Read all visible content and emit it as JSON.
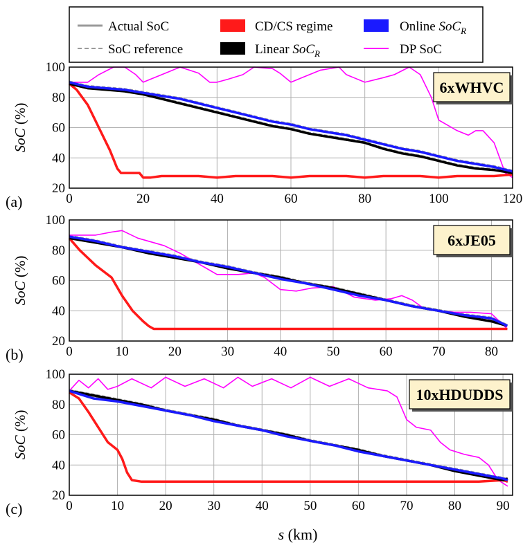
{
  "legend": [
    {
      "key": "actual",
      "label": "Actual SoC",
      "color": "#9a9a9a",
      "style": "solid-thin"
    },
    {
      "key": "ref",
      "label": "SoC reference",
      "color": "#9a9a9a",
      "style": "dashed"
    },
    {
      "key": "cdcs",
      "label": "CD/CS regime",
      "color": "#ff1a1a",
      "style": "thick"
    },
    {
      "key": "linear",
      "label_prefix": "Linear ",
      "label_math": "SoC",
      "label_sub": "R",
      "color": "#000000",
      "style": "thick"
    },
    {
      "key": "online",
      "label_prefix": "Online ",
      "label_math": "SoC",
      "label_sub": "R",
      "color": "#1a1aff",
      "style": "thick"
    },
    {
      "key": "dp",
      "label": "DP SoC",
      "color": "#ff00ff",
      "style": "thin"
    }
  ],
  "xlabel": {
    "var": "s",
    "unit": " (km)"
  },
  "chart_data": [
    {
      "type": "line",
      "panel": "(a)",
      "badge": "6xWHVC",
      "ylabel": "SoC (%)",
      "xlim": [
        0,
        120
      ],
      "ylim": [
        20,
        100
      ],
      "xticks": [
        0,
        20,
        40,
        60,
        80,
        100,
        120
      ],
      "yticks": [
        20,
        40,
        60,
        80,
        100
      ],
      "series": [
        {
          "key": "cdcs",
          "x": [
            0,
            2,
            5,
            8,
            11,
            13,
            14,
            19,
            20,
            22,
            25,
            30,
            35,
            40,
            45,
            50,
            55,
            60,
            65,
            70,
            75,
            80,
            85,
            90,
            95,
            100,
            105,
            110,
            115,
            120
          ],
          "y": [
            89,
            85,
            75,
            60,
            45,
            33,
            30,
            30,
            27,
            27,
            28,
            28,
            28,
            27,
            28,
            28,
            28,
            27,
            28,
            28,
            28,
            27,
            28,
            28,
            28,
            27,
            28,
            28,
            28,
            29
          ]
        },
        {
          "key": "dp",
          "x": [
            0,
            5,
            8,
            12,
            15,
            18,
            20,
            22,
            27,
            30,
            35,
            38,
            40,
            43,
            47,
            50,
            55,
            57,
            60,
            63,
            68,
            73,
            75,
            80,
            85,
            88,
            92,
            95,
            98,
            100,
            105,
            108,
            110,
            112,
            115,
            118,
            120
          ],
          "y": [
            90,
            90,
            95,
            100,
            100,
            95,
            90,
            92,
            97,
            100,
            96,
            90,
            90,
            92,
            95,
            100,
            99,
            96,
            90,
            93,
            98,
            100,
            95,
            90,
            93,
            95,
            100,
            95,
            80,
            65,
            58,
            55,
            58,
            58,
            50,
            30,
            27
          ]
        },
        {
          "key": "linear",
          "x": [
            0,
            5,
            10,
            15,
            20,
            25,
            30,
            35,
            40,
            45,
            50,
            55,
            60,
            65,
            70,
            75,
            80,
            85,
            90,
            95,
            100,
            105,
            110,
            115,
            120
          ],
          "y": [
            89,
            86,
            85,
            84,
            82,
            79,
            76,
            73,
            70,
            67,
            64,
            61,
            59,
            56,
            54,
            52,
            50,
            46,
            43,
            41,
            38,
            35,
            33,
            32,
            30
          ]
        },
        {
          "key": "online",
          "x": [
            0,
            5,
            10,
            15,
            20,
            25,
            30,
            35,
            40,
            45,
            50,
            55,
            60,
            65,
            70,
            75,
            80,
            85,
            90,
            95,
            100,
            105,
            110,
            115,
            120
          ],
          "y": [
            90,
            87,
            86,
            85,
            83,
            81,
            79,
            76,
            73,
            70,
            67,
            64,
            62,
            59,
            57,
            55,
            52,
            49,
            46,
            44,
            41,
            38,
            36,
            34,
            31
          ]
        }
      ]
    },
    {
      "type": "line",
      "panel": "(b)",
      "badge": "6xJE05",
      "ylabel": "SoC (%)",
      "xlim": [
        0,
        84
      ],
      "ylim": [
        20,
        100
      ],
      "xticks": [
        0,
        10,
        20,
        30,
        40,
        50,
        60,
        70,
        80
      ],
      "yticks": [
        20,
        40,
        60,
        80,
        100
      ],
      "series": [
        {
          "key": "cdcs",
          "x": [
            0,
            2,
            5,
            8,
            10,
            12,
            14,
            15,
            16,
            20,
            25,
            30,
            35,
            40,
            45,
            50,
            55,
            60,
            65,
            70,
            75,
            80,
            83
          ],
          "y": [
            88,
            80,
            70,
            62,
            50,
            40,
            33,
            30,
            28,
            28,
            28,
            28,
            28,
            28,
            28,
            28,
            28,
            28,
            28,
            28,
            28,
            28,
            28
          ]
        },
        {
          "key": "dp",
          "x": [
            0,
            5,
            8,
            10,
            13,
            16,
            18,
            21,
            24,
            26,
            28,
            32,
            35,
            37,
            40,
            43,
            46,
            50,
            54,
            58,
            61,
            63,
            65,
            67,
            70,
            73,
            76,
            80,
            83
          ],
          "y": [
            90,
            90,
            92,
            93,
            88,
            85,
            83,
            78,
            72,
            68,
            64,
            64,
            65,
            62,
            54,
            53,
            55,
            56,
            49,
            47,
            48,
            50,
            47,
            42,
            40,
            39,
            39,
            38,
            28
          ]
        },
        {
          "key": "linear",
          "x": [
            0,
            5,
            10,
            15,
            20,
            25,
            30,
            35,
            40,
            45,
            50,
            55,
            60,
            65,
            70,
            75,
            80,
            83
          ],
          "y": [
            88,
            85,
            82,
            78,
            75,
            72,
            68,
            65,
            62,
            58,
            55,
            51,
            47,
            43,
            40,
            36,
            33,
            30
          ]
        },
        {
          "key": "online",
          "x": [
            0,
            5,
            10,
            15,
            20,
            25,
            30,
            35,
            40,
            45,
            50,
            55,
            60,
            65,
            70,
            75,
            80,
            83
          ],
          "y": [
            89,
            86,
            82,
            79,
            76,
            72,
            69,
            65,
            61,
            58,
            54,
            50,
            47,
            43,
            40,
            37,
            35,
            30
          ]
        }
      ]
    },
    {
      "type": "line",
      "panel": "(c)",
      "badge": "10xHDUDDS",
      "ylabel": "SoC (%)",
      "xlim": [
        0,
        92
      ],
      "ylim": [
        20,
        100
      ],
      "xticks": [
        0,
        10,
        20,
        30,
        40,
        50,
        60,
        70,
        80,
        90
      ],
      "yticks": [
        20,
        40,
        60,
        80,
        100
      ],
      "series": [
        {
          "key": "cdcs",
          "x": [
            0,
            2,
            4,
            6,
            8,
            10,
            11,
            12,
            13,
            15,
            20,
            25,
            30,
            35,
            40,
            45,
            50,
            55,
            60,
            65,
            70,
            75,
            80,
            85,
            90,
            91
          ],
          "y": [
            88,
            84,
            75,
            65,
            55,
            50,
            44,
            35,
            30,
            29,
            29,
            29,
            29,
            29,
            29,
            29,
            29,
            29,
            29,
            29,
            29,
            29,
            29,
            29,
            30,
            29
          ]
        },
        {
          "key": "dp",
          "x": [
            0,
            2,
            4,
            6,
            8,
            10,
            13,
            17,
            20,
            24,
            28,
            32,
            35,
            38,
            42,
            46,
            50,
            54,
            58,
            62,
            66,
            68,
            70,
            72,
            75,
            77,
            79,
            82,
            85,
            87,
            89,
            91
          ],
          "y": [
            89,
            96,
            91,
            97,
            90,
            92,
            97,
            91,
            98,
            92,
            97,
            91,
            98,
            92,
            97,
            91,
            98,
            92,
            97,
            91,
            89,
            85,
            70,
            65,
            63,
            55,
            50,
            47,
            45,
            40,
            30,
            26
          ]
        },
        {
          "key": "linear",
          "x": [
            0,
            5,
            10,
            15,
            20,
            25,
            30,
            35,
            40,
            45,
            50,
            55,
            60,
            65,
            70,
            75,
            80,
            85,
            90,
            91
          ],
          "y": [
            89,
            86,
            83,
            80,
            76,
            73,
            70,
            66,
            63,
            60,
            56,
            53,
            50,
            46,
            43,
            40,
            36,
            33,
            30,
            31
          ]
        },
        {
          "key": "online",
          "x": [
            0,
            5,
            10,
            15,
            20,
            25,
            30,
            35,
            40,
            45,
            50,
            55,
            60,
            65,
            70,
            75,
            80,
            85,
            90,
            91
          ],
          "y": [
            89,
            84,
            82,
            79,
            76,
            73,
            69,
            66,
            63,
            59,
            56,
            53,
            49,
            46,
            43,
            40,
            37,
            34,
            31,
            30
          ]
        }
      ]
    }
  ]
}
